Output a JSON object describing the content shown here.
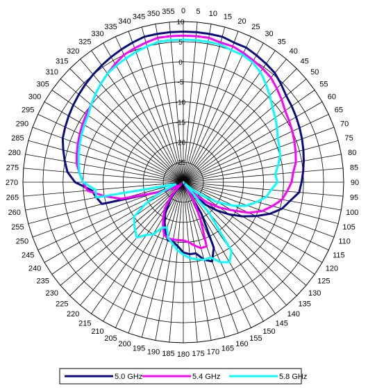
{
  "chart_data": {
    "type": "radar",
    "angles": [
      0,
      5,
      10,
      15,
      20,
      25,
      30,
      35,
      40,
      45,
      50,
      55,
      60,
      65,
      70,
      75,
      80,
      85,
      90,
      95,
      100,
      105,
      110,
      115,
      120,
      125,
      130,
      135,
      140,
      145,
      150,
      155,
      160,
      165,
      170,
      175,
      180,
      185,
      190,
      195,
      200,
      205,
      210,
      215,
      220,
      225,
      230,
      235,
      240,
      245,
      250,
      255,
      260,
      265,
      270,
      275,
      280,
      285,
      290,
      295,
      300,
      305,
      310,
      315,
      320,
      325,
      330,
      335,
      340,
      345,
      350,
      355
    ],
    "angle_labels": [
      "0",
      "5",
      "10",
      "15",
      "20",
      "25",
      "30",
      "35",
      "40",
      "45",
      "50",
      "55",
      "60",
      "65",
      "70",
      "75",
      "80",
      "85",
      "90",
      "95",
      "100",
      "105",
      "110",
      "115",
      "120",
      "125",
      "130",
      "135",
      "140",
      "145",
      "150",
      "155",
      "160",
      "165",
      "170",
      "175",
      "180",
      "185",
      "190",
      "195",
      "200",
      "205",
      "210",
      "215",
      "220",
      "225",
      "230",
      "235",
      "240",
      "245",
      "250",
      "255",
      "260",
      "265",
      "270",
      "275",
      "280",
      "285",
      "290",
      "295",
      "300",
      "305",
      "310",
      "315",
      "320",
      "325",
      "330",
      "335",
      "340",
      "345",
      "350",
      "355"
    ],
    "radial_range": [
      -30,
      10
    ],
    "radial_ticks": [
      -30,
      -25,
      -20,
      -15,
      -10,
      -5,
      0,
      5,
      10
    ],
    "radial_tick_labels": [
      "-30",
      "-25",
      "-20",
      "-15",
      "-10",
      "-5",
      "0",
      "5",
      "10"
    ],
    "grid": true,
    "legend_position": "bottom",
    "series": [
      {
        "name": "5.0 GHz",
        "color": "#0a0a80",
        "values": [
          7.5,
          7.5,
          7.5,
          7.5,
          7,
          7,
          6.5,
          6,
          5.5,
          4.5,
          3.5,
          3,
          2.5,
          2,
          1.5,
          1,
          0.5,
          0,
          -0.5,
          -1,
          -3,
          -4.5,
          -7,
          -10,
          -13,
          -16,
          -19,
          -22,
          -26,
          -30,
          -21,
          -12,
          -9,
          -10,
          -12,
          -12,
          -12.5,
          -14,
          -15,
          -15,
          -17,
          -19,
          -21,
          -24,
          -26,
          -30,
          -30,
          -29,
          -27,
          -25,
          -22,
          -9,
          -8,
          -7,
          -3,
          -1,
          0,
          1,
          2,
          2.5,
          3,
          3.5,
          4,
          4.5,
          5,
          5.5,
          6,
          6.5,
          7,
          7.5,
          7.5,
          7.5
        ]
      },
      {
        "name": "5.4 GHz",
        "color": "#ff00ff",
        "values": [
          6.5,
          6.5,
          6.5,
          6,
          6,
          5.5,
          5,
          4.5,
          4,
          3,
          2,
          1,
          0.5,
          0,
          -0.5,
          -1,
          -1.5,
          -2.5,
          -3,
          -4,
          -5,
          -7,
          -9,
          -12,
          -16,
          -19,
          -22,
          -25,
          -28,
          -30,
          -25,
          -20,
          -13,
          -13,
          -14,
          -15,
          -15.5,
          -15.5,
          -15.5,
          -15.5,
          -16,
          -18,
          -20,
          -22,
          -25,
          -28,
          -30,
          -29,
          -27,
          -25,
          -22,
          -14,
          -10,
          -6,
          -5,
          -4,
          -3,
          -2.5,
          -2,
          -1.5,
          -1,
          -0.5,
          0,
          1,
          2,
          3,
          4,
          5,
          5.5,
          6,
          6.5,
          6.5
        ]
      },
      {
        "name": "5.8 GHz",
        "color": "#00ffff",
        "values": [
          5.5,
          5.5,
          5.5,
          5.5,
          5,
          5,
          4.5,
          3.5,
          2,
          0.5,
          -1,
          -2,
          -3,
          -4,
          -4.5,
          -5,
          -6,
          -7,
          -6.5,
          -8,
          -9,
          -11,
          -13,
          -16,
          -20,
          -24,
          -27,
          -30,
          -20,
          -9,
          -7,
          -8,
          -10,
          -10,
          -10.5,
          -11,
          -12,
          -13,
          -14.5,
          -15.5,
          -18,
          -17.5,
          -15,
          -14,
          -12,
          -13,
          -14,
          -15,
          -19,
          -23,
          -27,
          -28,
          -8,
          -8,
          -5,
          -4,
          -3.5,
          -3,
          -2.5,
          -2,
          -1.5,
          -1,
          0,
          1,
          2,
          3,
          3.5,
          4,
          4.5,
          5,
          5.5,
          5.5
        ]
      }
    ]
  }
}
